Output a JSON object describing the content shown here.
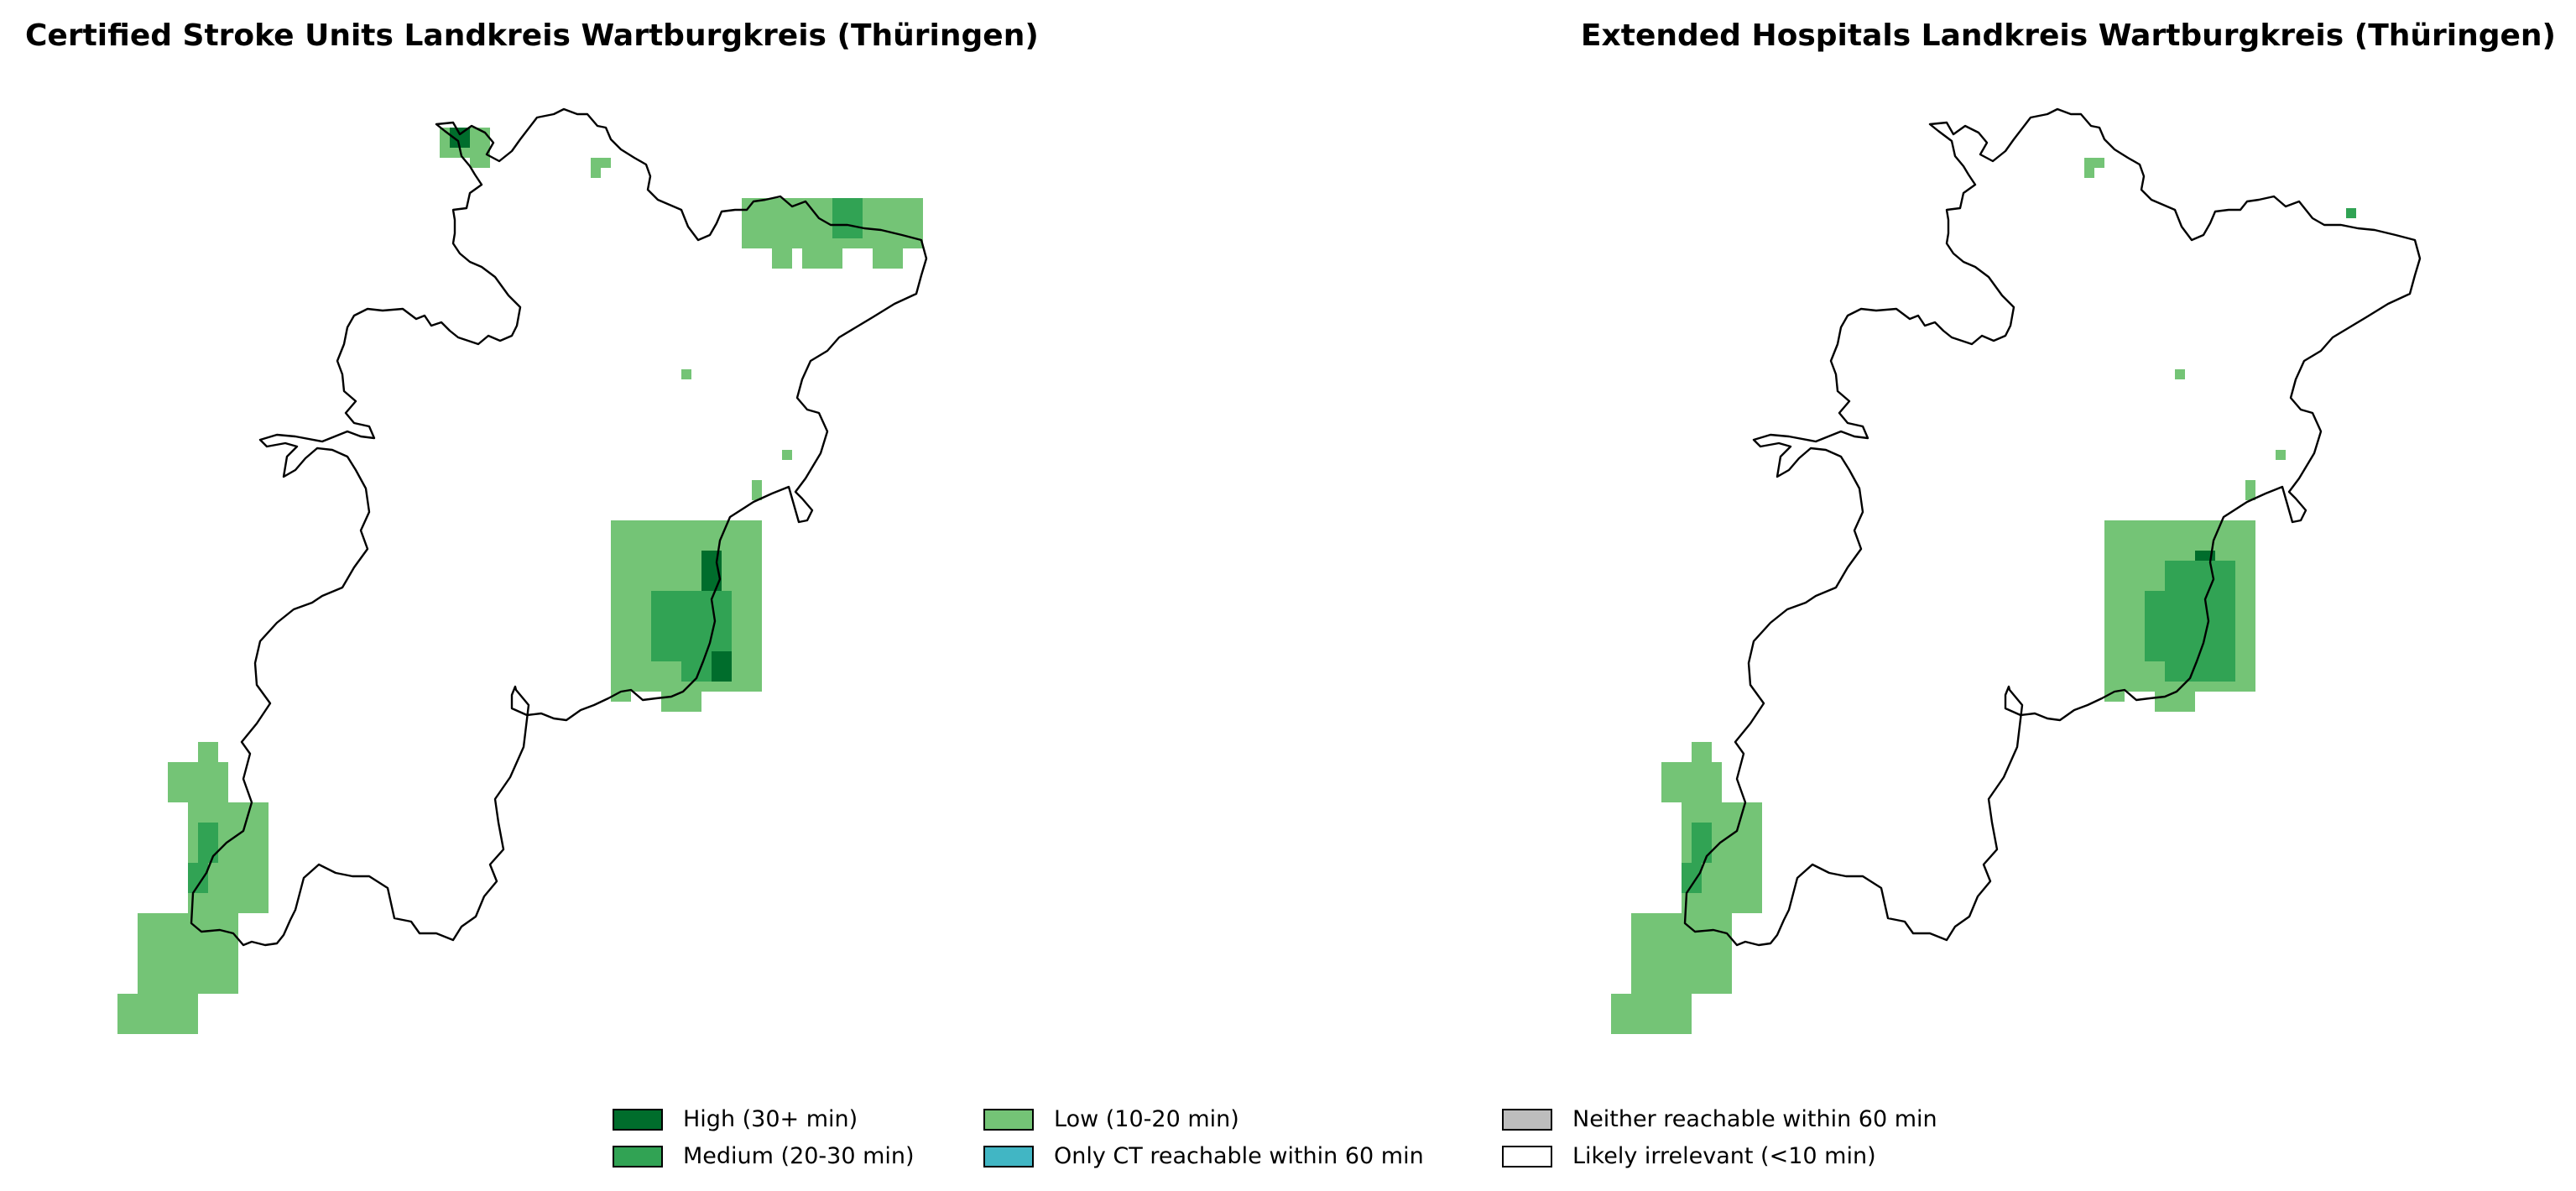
{
  "maps": [
    {
      "id": "left",
      "title": "Certified Stroke Units Landkreis Wartburgkreis (Thüringen)"
    },
    {
      "id": "right",
      "title": "Extended Hospitals Landkreis Wartburgkreis (Thüringen)"
    }
  ],
  "legend": [
    {
      "label": "High (30+ min)",
      "color": "#006d2c"
    },
    {
      "label": "Medium (20-30 min)",
      "color": "#31a354"
    },
    {
      "label": "Low (10-20 min)",
      "color": "#74c476"
    },
    {
      "label": "Only CT reachable within 60 min",
      "color": "#41b6c4"
    },
    {
      "label": "Neither reachable within 60 min",
      "color": "#bdbdbd"
    },
    {
      "label": "Likely irrelevant (<10 min)",
      "color": "#ffffff"
    }
  ],
  "colors": {
    "high": "#006d2c",
    "medium": "#31a354",
    "low": "#74c476",
    "border": "#000000"
  }
}
